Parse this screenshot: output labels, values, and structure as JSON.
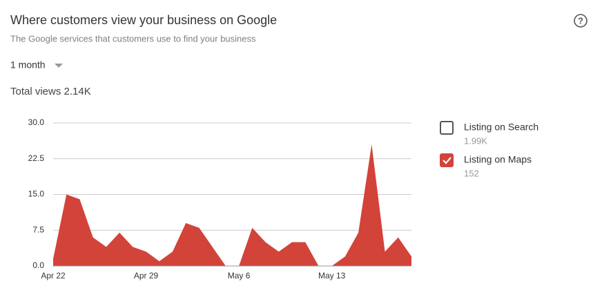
{
  "header": {
    "title": "Where customers view your business on Google",
    "subtitle": "The Google services that customers use to find your business",
    "period": "1 month",
    "total_views": "Total views 2.14K"
  },
  "chart_data": {
    "type": "area",
    "categories": [
      "Apr 22",
      null,
      null,
      null,
      null,
      null,
      null,
      "Apr 29",
      null,
      null,
      null,
      null,
      null,
      null,
      "May 6",
      null,
      null,
      null,
      null,
      null,
      null,
      "May 13",
      null,
      null,
      null,
      null,
      null,
      null
    ],
    "series": [
      {
        "color": "#d2433a",
        "values": [
          1.5,
          15,
          14,
          6,
          4,
          7,
          4,
          3,
          1,
          3,
          9,
          8,
          4,
          0,
          0,
          8,
          5,
          3,
          5,
          5,
          0,
          0,
          2,
          7,
          25.5,
          3,
          6,
          2
        ]
      }
    ],
    "ylim": [
      0,
      30
    ],
    "yticks": [
      {
        "value": 0,
        "label": "0.0"
      },
      7.5,
      {
        "value": 15,
        "label": "15.0"
      },
      22.5,
      {
        "value": 30,
        "label": "30.0"
      }
    ],
    "grid": true,
    "legend": [
      {
        "name": "Listing on Search",
        "total": "1.99K",
        "checked": false
      },
      {
        "name": "Listing on Maps",
        "total": "152",
        "checked": true
      }
    ]
  }
}
